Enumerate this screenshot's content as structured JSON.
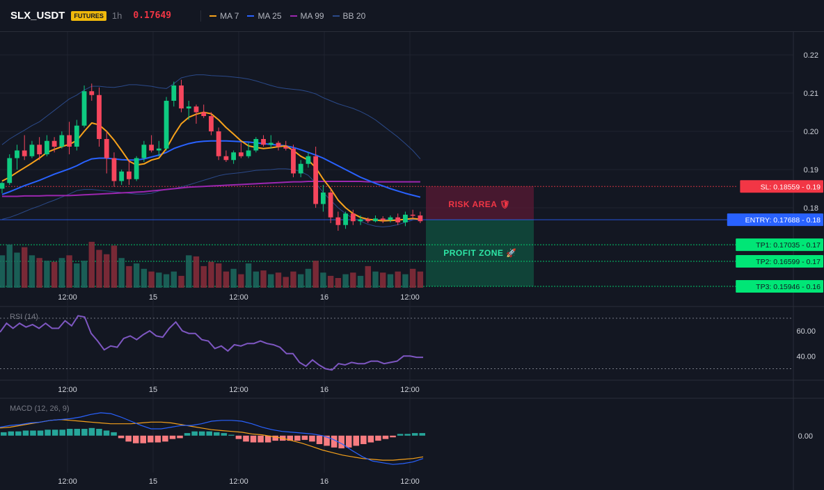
{
  "header": {
    "symbol": "SLX_USDT",
    "badge": "FUTURES",
    "timeframe": "1h",
    "price": "0.17649",
    "legend": [
      {
        "label": "MA 7",
        "color": "#f7a21b"
      },
      {
        "label": "MA 25",
        "color": "#2962ff"
      },
      {
        "label": "MA 99",
        "color": "#9c27b0"
      },
      {
        "label": "BB 20",
        "color": "#2b4a8a"
      }
    ]
  },
  "x_axis_labels": [
    "12:00",
    "15",
    "12:00",
    "16",
    "12:00"
  ],
  "chart_data": [
    {
      "type": "candlestick",
      "y_ticks": [
        "0.22",
        "0.21",
        "0.20",
        "0.19",
        "0.18"
      ],
      "ylim": [
        0.158,
        0.226
      ],
      "candles": [
        [
          0.185,
          0.1868,
          0.1838,
          0.1865
        ],
        [
          0.1865,
          0.194,
          0.186,
          0.193
        ],
        [
          0.193,
          0.1965,
          0.19,
          0.195
        ],
        [
          0.195,
          0.199,
          0.1925,
          0.1935
        ],
        [
          0.1935,
          0.1975,
          0.193,
          0.1965
        ],
        [
          0.1965,
          0.1985,
          0.1925,
          0.194
        ],
        [
          0.194,
          0.199,
          0.1935,
          0.1975
        ],
        [
          0.1975,
          0.1985,
          0.1945,
          0.196
        ],
        [
          0.196,
          0.2,
          0.1955,
          0.199
        ],
        [
          0.199,
          0.2025,
          0.194,
          0.196
        ],
        [
          0.196,
          0.203,
          0.195,
          0.2015
        ],
        [
          0.2015,
          0.212,
          0.201,
          0.2105
        ],
        [
          0.2105,
          0.2125,
          0.208,
          0.2095
        ],
        [
          0.2095,
          0.2115,
          0.196,
          0.198
        ],
        [
          0.198,
          0.2,
          0.189,
          0.193
        ],
        [
          0.193,
          0.1945,
          0.1855,
          0.187
        ],
        [
          0.187,
          0.19,
          0.186,
          0.1895
        ],
        [
          0.1895,
          0.1925,
          0.186,
          0.1875
        ],
        [
          0.1875,
          0.1935,
          0.187,
          0.193
        ],
        [
          0.193,
          0.1975,
          0.192,
          0.1965
        ],
        [
          0.1965,
          0.199,
          0.1945,
          0.195
        ],
        [
          0.195,
          0.1975,
          0.1935,
          0.1955
        ],
        [
          0.1955,
          0.209,
          0.195,
          0.208
        ],
        [
          0.208,
          0.213,
          0.2065,
          0.212
        ],
        [
          0.212,
          0.2135,
          0.205,
          0.206
        ],
        [
          0.206,
          0.208,
          0.203,
          0.2065
        ],
        [
          0.2065,
          0.207,
          0.202,
          0.205
        ],
        [
          0.205,
          0.207,
          0.2035,
          0.204
        ],
        [
          0.204,
          0.205,
          0.199,
          0.2
        ],
        [
          0.2,
          0.201,
          0.1925,
          0.1935
        ],
        [
          0.1935,
          0.195,
          0.192,
          0.1925
        ],
        [
          0.1925,
          0.195,
          0.1915,
          0.1945
        ],
        [
          0.1945,
          0.197,
          0.193,
          0.1935
        ],
        [
          0.1935,
          0.197,
          0.193,
          0.195
        ],
        [
          0.195,
          0.1985,
          0.1945,
          0.198
        ],
        [
          0.198,
          0.199,
          0.196,
          0.1965
        ],
        [
          0.1965,
          0.199,
          0.1955,
          0.197
        ],
        [
          0.197,
          0.1975,
          0.195,
          0.196
        ],
        [
          0.196,
          0.1975,
          0.195,
          0.1955
        ],
        [
          0.1955,
          0.1965,
          0.188,
          0.189
        ],
        [
          0.189,
          0.1925,
          0.188,
          0.1915
        ],
        [
          0.1915,
          0.1945,
          0.1905,
          0.1935
        ],
        [
          0.1935,
          0.196,
          0.18,
          0.181
        ],
        [
          0.181,
          0.186,
          0.179,
          0.184
        ],
        [
          0.184,
          0.185,
          0.176,
          0.1775
        ],
        [
          0.1775,
          0.179,
          0.174,
          0.1755
        ],
        [
          0.1755,
          0.179,
          0.1745,
          0.1785
        ],
        [
          0.1785,
          0.1795,
          0.1755,
          0.1765
        ],
        [
          0.1765,
          0.178,
          0.1755,
          0.177
        ],
        [
          0.177,
          0.1775,
          0.176,
          0.1765
        ],
        [
          0.1765,
          0.178,
          0.1762,
          0.1772
        ],
        [
          0.1772,
          0.1778,
          0.176,
          0.1768
        ],
        [
          0.1768,
          0.178,
          0.1762,
          0.1775
        ],
        [
          0.1775,
          0.1785,
          0.1755,
          0.1762
        ],
        [
          0.1762,
          0.179,
          0.1752,
          0.1782
        ],
        [
          0.1782,
          0.1795,
          0.1772,
          0.178
        ],
        [
          0.178,
          0.179,
          0.176,
          0.1765
        ]
      ],
      "ma7": [
        0.187,
        0.188,
        0.1893,
        0.1905,
        0.1917,
        0.193,
        0.1945,
        0.1953,
        0.196,
        0.1966,
        0.1976,
        0.2,
        0.2022,
        0.2017,
        0.2,
        0.1977,
        0.195,
        0.1922,
        0.1912,
        0.1915,
        0.1925,
        0.193,
        0.1955,
        0.199,
        0.202,
        0.2037,
        0.2045,
        0.205,
        0.2046,
        0.203,
        0.201,
        0.1993,
        0.1975,
        0.1962,
        0.1958,
        0.1955,
        0.1957,
        0.196,
        0.1962,
        0.195,
        0.1935,
        0.1925,
        0.1905,
        0.1875,
        0.185,
        0.182,
        0.18,
        0.1785,
        0.1775,
        0.177,
        0.1768,
        0.1766,
        0.1767,
        0.1768,
        0.177,
        0.1772,
        0.177
      ],
      "ma25": [
        0.1835,
        0.1842,
        0.185,
        0.1858,
        0.1865,
        0.1872,
        0.188,
        0.1888,
        0.1895,
        0.1902,
        0.191,
        0.192,
        0.1928,
        0.193,
        0.193,
        0.1928,
        0.1926,
        0.1925,
        0.1925,
        0.1928,
        0.1933,
        0.1938,
        0.1945,
        0.1955,
        0.1962,
        0.1968,
        0.1972,
        0.1974,
        0.1975,
        0.1975,
        0.1975,
        0.1974,
        0.1973,
        0.1972,
        0.197,
        0.1968,
        0.1966,
        0.1964,
        0.1962,
        0.1958,
        0.1952,
        0.1945,
        0.1938,
        0.193,
        0.192,
        0.191,
        0.19,
        0.189,
        0.188,
        0.1872,
        0.1864,
        0.1857,
        0.185,
        0.1844,
        0.1838,
        0.1833,
        0.1828
      ],
      "ma99": [
        0.183,
        0.183,
        0.183,
        0.1831,
        0.1831,
        0.1831,
        0.1832,
        0.1832,
        0.1832,
        0.1832,
        0.1833,
        0.1834,
        0.1835,
        0.1836,
        0.1837,
        0.1838,
        0.1839,
        0.184,
        0.1841,
        0.1842,
        0.1844,
        0.1846,
        0.1848,
        0.185,
        0.1852,
        0.1854,
        0.1855,
        0.1856,
        0.1857,
        0.1858,
        0.1859,
        0.186,
        0.1861,
        0.1862,
        0.1863,
        0.1864,
        0.1865,
        0.1866,
        0.1867,
        0.1868,
        0.1868,
        0.1869,
        0.1869,
        0.1869,
        0.1869,
        0.1869,
        0.1869,
        0.1869,
        0.1869,
        0.1868,
        0.1868,
        0.1868,
        0.1868,
        0.1868,
        0.1868,
        0.1868,
        0.1868
      ],
      "bb_upper": [
        0.1965,
        0.198,
        0.1992,
        0.2003,
        0.2015,
        0.2025,
        0.204,
        0.2055,
        0.207,
        0.2085,
        0.2095,
        0.2108,
        0.2118,
        0.2118,
        0.2116,
        0.2115,
        0.2118,
        0.2122,
        0.2122,
        0.212,
        0.2118,
        0.2114,
        0.2112,
        0.2125,
        0.214,
        0.2145,
        0.2148,
        0.2148,
        0.2146,
        0.2145,
        0.2144,
        0.2142,
        0.214,
        0.2137,
        0.2132,
        0.2126,
        0.212,
        0.2115,
        0.2112,
        0.211,
        0.2108,
        0.2104,
        0.2098,
        0.2088,
        0.208,
        0.2072,
        0.2066,
        0.206,
        0.2052,
        0.2042,
        0.203,
        0.2015,
        0.2,
        0.1985,
        0.1968,
        0.195,
        0.1928
      ],
      "bb_lower": [
        0.177,
        0.1775,
        0.1782,
        0.179,
        0.1798,
        0.1805,
        0.1813,
        0.182,
        0.1828,
        0.1836,
        0.1845,
        0.1848,
        0.1848,
        0.1846,
        0.1844,
        0.1842,
        0.184,
        0.1838,
        0.1836,
        0.1836,
        0.1838,
        0.1844,
        0.1848,
        0.185,
        0.1855,
        0.186,
        0.1866,
        0.1872,
        0.1878,
        0.1884,
        0.1888,
        0.189,
        0.1892,
        0.1895,
        0.1898,
        0.1899,
        0.19,
        0.1902,
        0.1902,
        0.19,
        0.1895,
        0.1885,
        0.1865,
        0.184,
        0.182,
        0.18,
        0.1785,
        0.1772,
        0.1765,
        0.1757,
        0.1752,
        0.175,
        0.1752,
        0.1756,
        0.1762,
        0.1768,
        0.1772
      ],
      "volume": [
        60,
        80,
        65,
        75,
        60,
        55,
        50,
        48,
        55,
        60,
        45,
        50,
        85,
        70,
        62,
        78,
        55,
        40,
        45,
        35,
        30,
        28,
        25,
        30,
        22,
        60,
        58,
        40,
        48,
        45,
        30,
        35,
        25,
        45,
        30,
        32,
        25,
        28,
        20,
        30,
        25,
        35,
        50,
        28,
        22,
        18,
        25,
        28,
        22,
        40,
        30,
        28,
        25,
        30,
        25,
        35,
        30
      ],
      "trade": {
        "sl_price": 0.18559,
        "entry_price": 0.17688,
        "tp1_price": 0.17035,
        "tp2_price": 0.16599,
        "tp3_price": 0.15946,
        "sl_label": "SL: 0.18559 - 0.19",
        "entry_label": "ENTRY: 0.17688 - 0.18",
        "tp1_label": "TP1: 0.17035 - 0.17",
        "tp2_label": "TP2: 0.16599 - 0.17",
        "tp3_label": "TP3: 0.15946 - 0.16",
        "risk_label": "RISK AREA 🛡",
        "profit_label": "PROFIT ZONE 🚀",
        "risk_color": "#f23645",
        "entry_color": "#2962ff",
        "profit_color": "#00e676"
      }
    },
    {
      "type": "line",
      "title": "RSI (14)",
      "y_ticks": [
        "60.00",
        "40.00"
      ],
      "levels": [
        70,
        30
      ],
      "ylim": [
        22,
        76
      ],
      "values": [
        59,
        66,
        62,
        66,
        63,
        65,
        62,
        66,
        62,
        62,
        68,
        64,
        72,
        71,
        58,
        52,
        45,
        48,
        47,
        54,
        56,
        53,
        57,
        60,
        56,
        55,
        62,
        67,
        60,
        58,
        58,
        53,
        52,
        46,
        48,
        44,
        49,
        48,
        50,
        50,
        52,
        50,
        49,
        47,
        42,
        42,
        35,
        32,
        37,
        33,
        30,
        29,
        34,
        33,
        35,
        34,
        34,
        36,
        36,
        34,
        35,
        36,
        40,
        40,
        39,
        39
      ]
    },
    {
      "type": "bar+line",
      "title": "MACD (12, 26, 9)",
      "y_ticks": [
        "0.00"
      ],
      "ylim": [
        -0.0042,
        0.004
      ],
      "histogram": [
        0.0004,
        0.0005,
        0.0005,
        0.0006,
        0.0006,
        0.0006,
        0.0007,
        0.0007,
        0.0007,
        0.0008,
        0.0008,
        0.0008,
        0.0009,
        0.0008,
        0.0006,
        0.0004,
        -0.0003,
        -0.0007,
        -0.0009,
        -0.0009,
        -0.0008,
        -0.0008,
        -0.0007,
        -0.0004,
        -0.0003,
        0.0003,
        0.0005,
        0.0005,
        0.0005,
        0.0004,
        0.0003,
        0.0001,
        -0.0004,
        -0.0007,
        -0.0008,
        -0.0008,
        -0.0008,
        -0.0006,
        -0.0006,
        -0.0006,
        -0.0006,
        -0.0005,
        -0.0007,
        -0.001,
        -0.0012,
        -0.0014,
        -0.0015,
        -0.0014,
        -0.0012,
        -0.001,
        -0.0008,
        -0.0006,
        -0.0004,
        -0.0002,
        0.0002,
        0.0002,
        0.0003,
        0.0003
      ],
      "macd_line": [
        0.001,
        0.0012,
        0.0013,
        0.0015,
        0.0016,
        0.0018,
        0.0019,
        0.002,
        0.0022,
        0.0025,
        0.0027,
        0.0026,
        0.0022,
        0.0017,
        0.0012,
        0.0008,
        0.0008,
        0.001,
        0.0012,
        0.0012,
        0.0014,
        0.0017,
        0.0018,
        0.0018,
        0.0017,
        0.0014,
        0.001,
        0.0007,
        0.0005,
        0.0004,
        0.0003,
        0.0002,
        0.0,
        -0.0004,
        -0.001,
        -0.0018,
        -0.0025,
        -0.003,
        -0.0032,
        -0.0034,
        -0.0033,
        -0.0031,
        -0.0027
      ],
      "signal_line": [
        0.0009,
        0.001,
        0.0012,
        0.0014,
        0.0016,
        0.0018,
        0.0019,
        0.0018,
        0.0017,
        0.0016,
        0.0015,
        0.0014,
        0.0014,
        0.0014,
        0.0015,
        0.0016,
        0.0016,
        0.0015,
        0.0013,
        0.0011,
        0.0009,
        0.0007,
        0.0006,
        0.0005,
        0.0004,
        0.0002,
        0.0001,
        -0.0001,
        -0.0003,
        -0.0006,
        -0.0009,
        -0.0013,
        -0.0017,
        -0.002,
        -0.0023,
        -0.0025,
        -0.0027,
        -0.0028,
        -0.0029,
        -0.0029,
        -0.0028,
        -0.0027,
        -0.0025
      ]
    }
  ]
}
